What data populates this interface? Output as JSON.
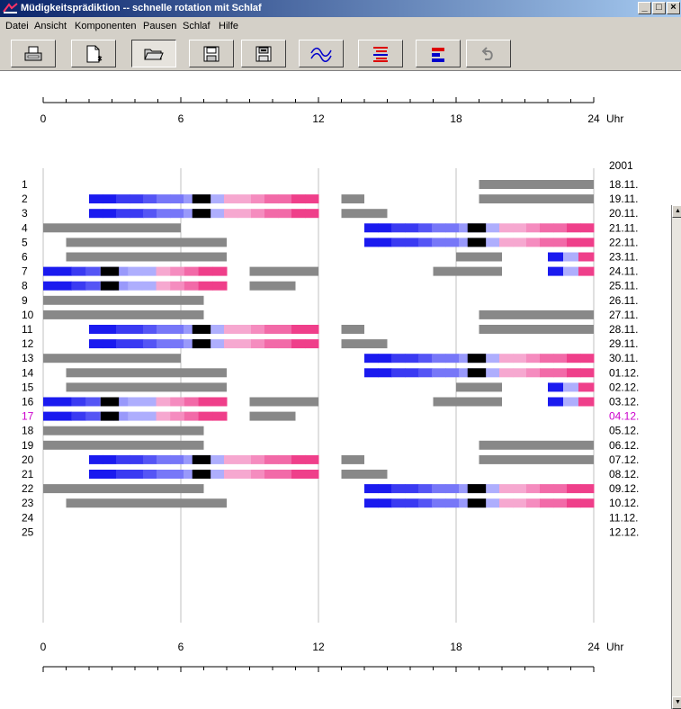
{
  "window": {
    "title": "Müdigkeitspräd­iktion -- schnelle rotation mit Schlaf",
    "buttons": {
      "minimize": "_",
      "maximize": "□",
      "close": "×"
    }
  },
  "menu": [
    "Datei",
    "Ansicht",
    "Komponenten",
    "Pausen",
    "Schlaf",
    "Hilfe"
  ],
  "toolbar": {
    "buttons": [
      {
        "name": "print-icon"
      },
      {
        "name": "new-document-icon"
      },
      {
        "name": "open-folder-icon",
        "pressed": true
      },
      {
        "name": "save-disk-icon"
      },
      {
        "name": "save-as-disk-icon"
      },
      {
        "name": "wave-curve-icon"
      },
      {
        "name": "lines-red-blue-icon"
      },
      {
        "name": "bars-red-blue-icon"
      },
      {
        "name": "redo-arrow-icon"
      }
    ]
  },
  "colors": {
    "sleep": "#888888",
    "highlight_row": "#cc00cc",
    "gridline": "#c0c0c0",
    "fatigue_scale": [
      "#1a1aef",
      "#3a3af2",
      "#5555f5",
      "#7777f8",
      "#9999fb",
      "#aeaefd",
      "#f6a8d0",
      "#f58cbf",
      "#f26aa8",
      "#ef3f8a"
    ]
  },
  "chart_data": {
    "type": "schedule-timeline",
    "x_axis": {
      "range_hours": [
        0,
        24
      ],
      "tick_labels": [
        "0",
        "6",
        "12",
        "18",
        "24"
      ],
      "unit": "Uhr"
    },
    "year_label": "2001",
    "highlighted_row": 17,
    "rows": [
      {
        "n": "1",
        "date": "18.11.",
        "sleep": [
          [
            19,
            24
          ]
        ],
        "shifts": []
      },
      {
        "n": "2",
        "date": "19.11.",
        "sleep": [
          [
            13,
            14
          ],
          [
            19,
            24
          ]
        ],
        "shifts": [
          {
            "start": 2,
            "end": 12,
            "peak": 6.5
          }
        ]
      },
      {
        "n": "3",
        "date": "20.11.",
        "sleep": [
          [
            13,
            15
          ]
        ],
        "shifts": [
          {
            "start": 2,
            "end": 12,
            "peak": 6.5
          }
        ]
      },
      {
        "n": "4",
        "date": "21.11.",
        "sleep": [
          [
            0,
            6
          ]
        ],
        "shifts": [
          {
            "start": 14,
            "end": 24,
            "peak": 18.5
          }
        ]
      },
      {
        "n": "5",
        "date": "22.11.",
        "sleep": [
          [
            1,
            8
          ]
        ],
        "shifts": [
          {
            "start": 14,
            "end": 24,
            "peak": 18.5
          }
        ]
      },
      {
        "n": "6",
        "date": "23.11.",
        "sleep": [
          [
            1,
            8
          ],
          [
            18,
            20
          ]
        ],
        "shifts": [
          {
            "start": 22,
            "end": 24,
            "peak": -1
          }
        ]
      },
      {
        "n": "7",
        "date": "24.11.",
        "sleep": [
          [
            9,
            12
          ],
          [
            17,
            20
          ]
        ],
        "shifts": [
          {
            "start": 0,
            "end": 8,
            "peak": 2.5
          },
          {
            "start": 22,
            "end": 24,
            "peak": -1
          }
        ]
      },
      {
        "n": "8",
        "date": "25.11.",
        "sleep": [
          [
            9,
            11
          ]
        ],
        "shifts": [
          {
            "start": 0,
            "end": 8,
            "peak": 2.5
          }
        ]
      },
      {
        "n": "9",
        "date": "26.11.",
        "sleep": [
          [
            0,
            7
          ]
        ],
        "shifts": []
      },
      {
        "n": "10",
        "date": "27.11.",
        "sleep": [
          [
            0,
            7
          ],
          [
            19,
            24
          ]
        ],
        "shifts": []
      },
      {
        "n": "11",
        "date": "28.11.",
        "sleep": [
          [
            13,
            14
          ],
          [
            19,
            24
          ]
        ],
        "shifts": [
          {
            "start": 2,
            "end": 12,
            "peak": 6.5
          }
        ]
      },
      {
        "n": "12",
        "date": "29.11.",
        "sleep": [
          [
            13,
            15
          ]
        ],
        "shifts": [
          {
            "start": 2,
            "end": 12,
            "peak": 6.5
          }
        ]
      },
      {
        "n": "13",
        "date": "30.11.",
        "sleep": [
          [
            0,
            6
          ]
        ],
        "shifts": [
          {
            "start": 14,
            "end": 24,
            "peak": 18.5
          }
        ]
      },
      {
        "n": "14",
        "date": "01.12.",
        "sleep": [
          [
            1,
            8
          ]
        ],
        "shifts": [
          {
            "start": 14,
            "end": 24,
            "peak": 18.5
          }
        ]
      },
      {
        "n": "15",
        "date": "02.12.",
        "sleep": [
          [
            1,
            8
          ],
          [
            18,
            20
          ]
        ],
        "shifts": [
          {
            "start": 22,
            "end": 24,
            "peak": -1
          }
        ]
      },
      {
        "n": "16",
        "date": "03.12.",
        "sleep": [
          [
            9,
            12
          ],
          [
            17,
            20
          ]
        ],
        "shifts": [
          {
            "start": 0,
            "end": 8,
            "peak": 2.5
          },
          {
            "start": 22,
            "end": 24,
            "peak": -1
          }
        ]
      },
      {
        "n": "17",
        "date": "04.12.",
        "sleep": [
          [
            9,
            11
          ]
        ],
        "shifts": [
          {
            "start": 0,
            "end": 8,
            "peak": 2.5
          }
        ]
      },
      {
        "n": "18",
        "date": "05.12.",
        "sleep": [
          [
            0,
            7
          ]
        ],
        "shifts": []
      },
      {
        "n": "19",
        "date": "06.12.",
        "sleep": [
          [
            0,
            7
          ],
          [
            19,
            24
          ]
        ],
        "shifts": []
      },
      {
        "n": "20",
        "date": "07.12.",
        "sleep": [
          [
            13,
            14
          ],
          [
            19,
            24
          ]
        ],
        "shifts": [
          {
            "start": 2,
            "end": 12,
            "peak": 6.5
          }
        ]
      },
      {
        "n": "21",
        "date": "08.12.",
        "sleep": [
          [
            13,
            15
          ]
        ],
        "shifts": [
          {
            "start": 2,
            "end": 12,
            "peak": 6.5
          }
        ]
      },
      {
        "n": "22",
        "date": "09.12.",
        "sleep": [
          [
            0,
            7
          ]
        ],
        "shifts": [
          {
            "start": 14,
            "end": 24,
            "peak": 18.5
          }
        ]
      },
      {
        "n": "23",
        "date": "10.12.",
        "sleep": [
          [
            1,
            8
          ]
        ],
        "shifts": [
          {
            "start": 14,
            "end": 24,
            "peak": 18.5
          }
        ]
      },
      {
        "n": "24",
        "date": "11.12.",
        "sleep": [],
        "shifts": []
      },
      {
        "n": "25",
        "date": "12.12.",
        "sleep": [],
        "shifts": []
      }
    ]
  }
}
